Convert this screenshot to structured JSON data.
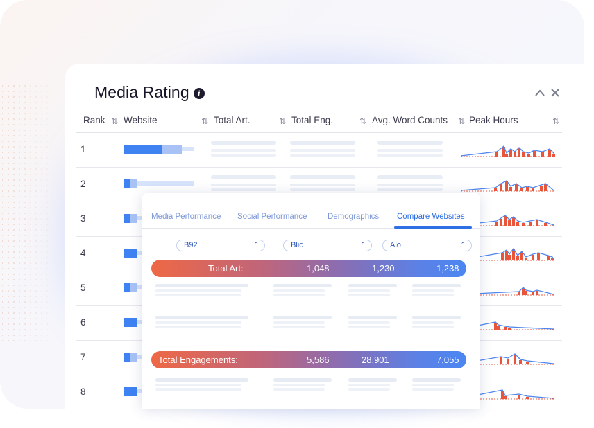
{
  "panel": {
    "title": "Media Rating",
    "info_icon": "info-icon"
  },
  "window_controls": {
    "collapse_icon": "chevron-up-icon",
    "close_icon": "close-icon"
  },
  "table": {
    "columns": [
      "Rank",
      "Website",
      "Total Art.",
      "Total Eng.",
      "Avg. Word Counts",
      "Peak Hours"
    ],
    "ranks": [
      "1",
      "2",
      "3",
      "4",
      "5",
      "6",
      "7",
      "8"
    ],
    "website_bar_values": [
      0.55,
      0.1,
      0.1,
      0.2,
      0.1,
      0.2,
      0.1,
      0.2
    ]
  },
  "compare_card": {
    "tabs": [
      "Media Performance",
      "Social Performance",
      "Demographics",
      "Compare Websites"
    ],
    "active_tab": 3,
    "sites": [
      "B92",
      "Blic",
      "Alo"
    ],
    "total_art": {
      "label": "Total Art:",
      "values": [
        "1,048",
        "1,230",
        "1,238"
      ]
    },
    "total_engagements": {
      "label": "Total Engagements:",
      "values": [
        "5,586",
        "28,901",
        "7,055"
      ]
    }
  },
  "colors": {
    "accent_blue": "#3f82f2",
    "accent_orange": "#ee6845",
    "gradient_start": "#ee6845",
    "gradient_end": "#4b86f1",
    "spark_bar": "#e8553a",
    "spark_line": "#4f86ee"
  }
}
